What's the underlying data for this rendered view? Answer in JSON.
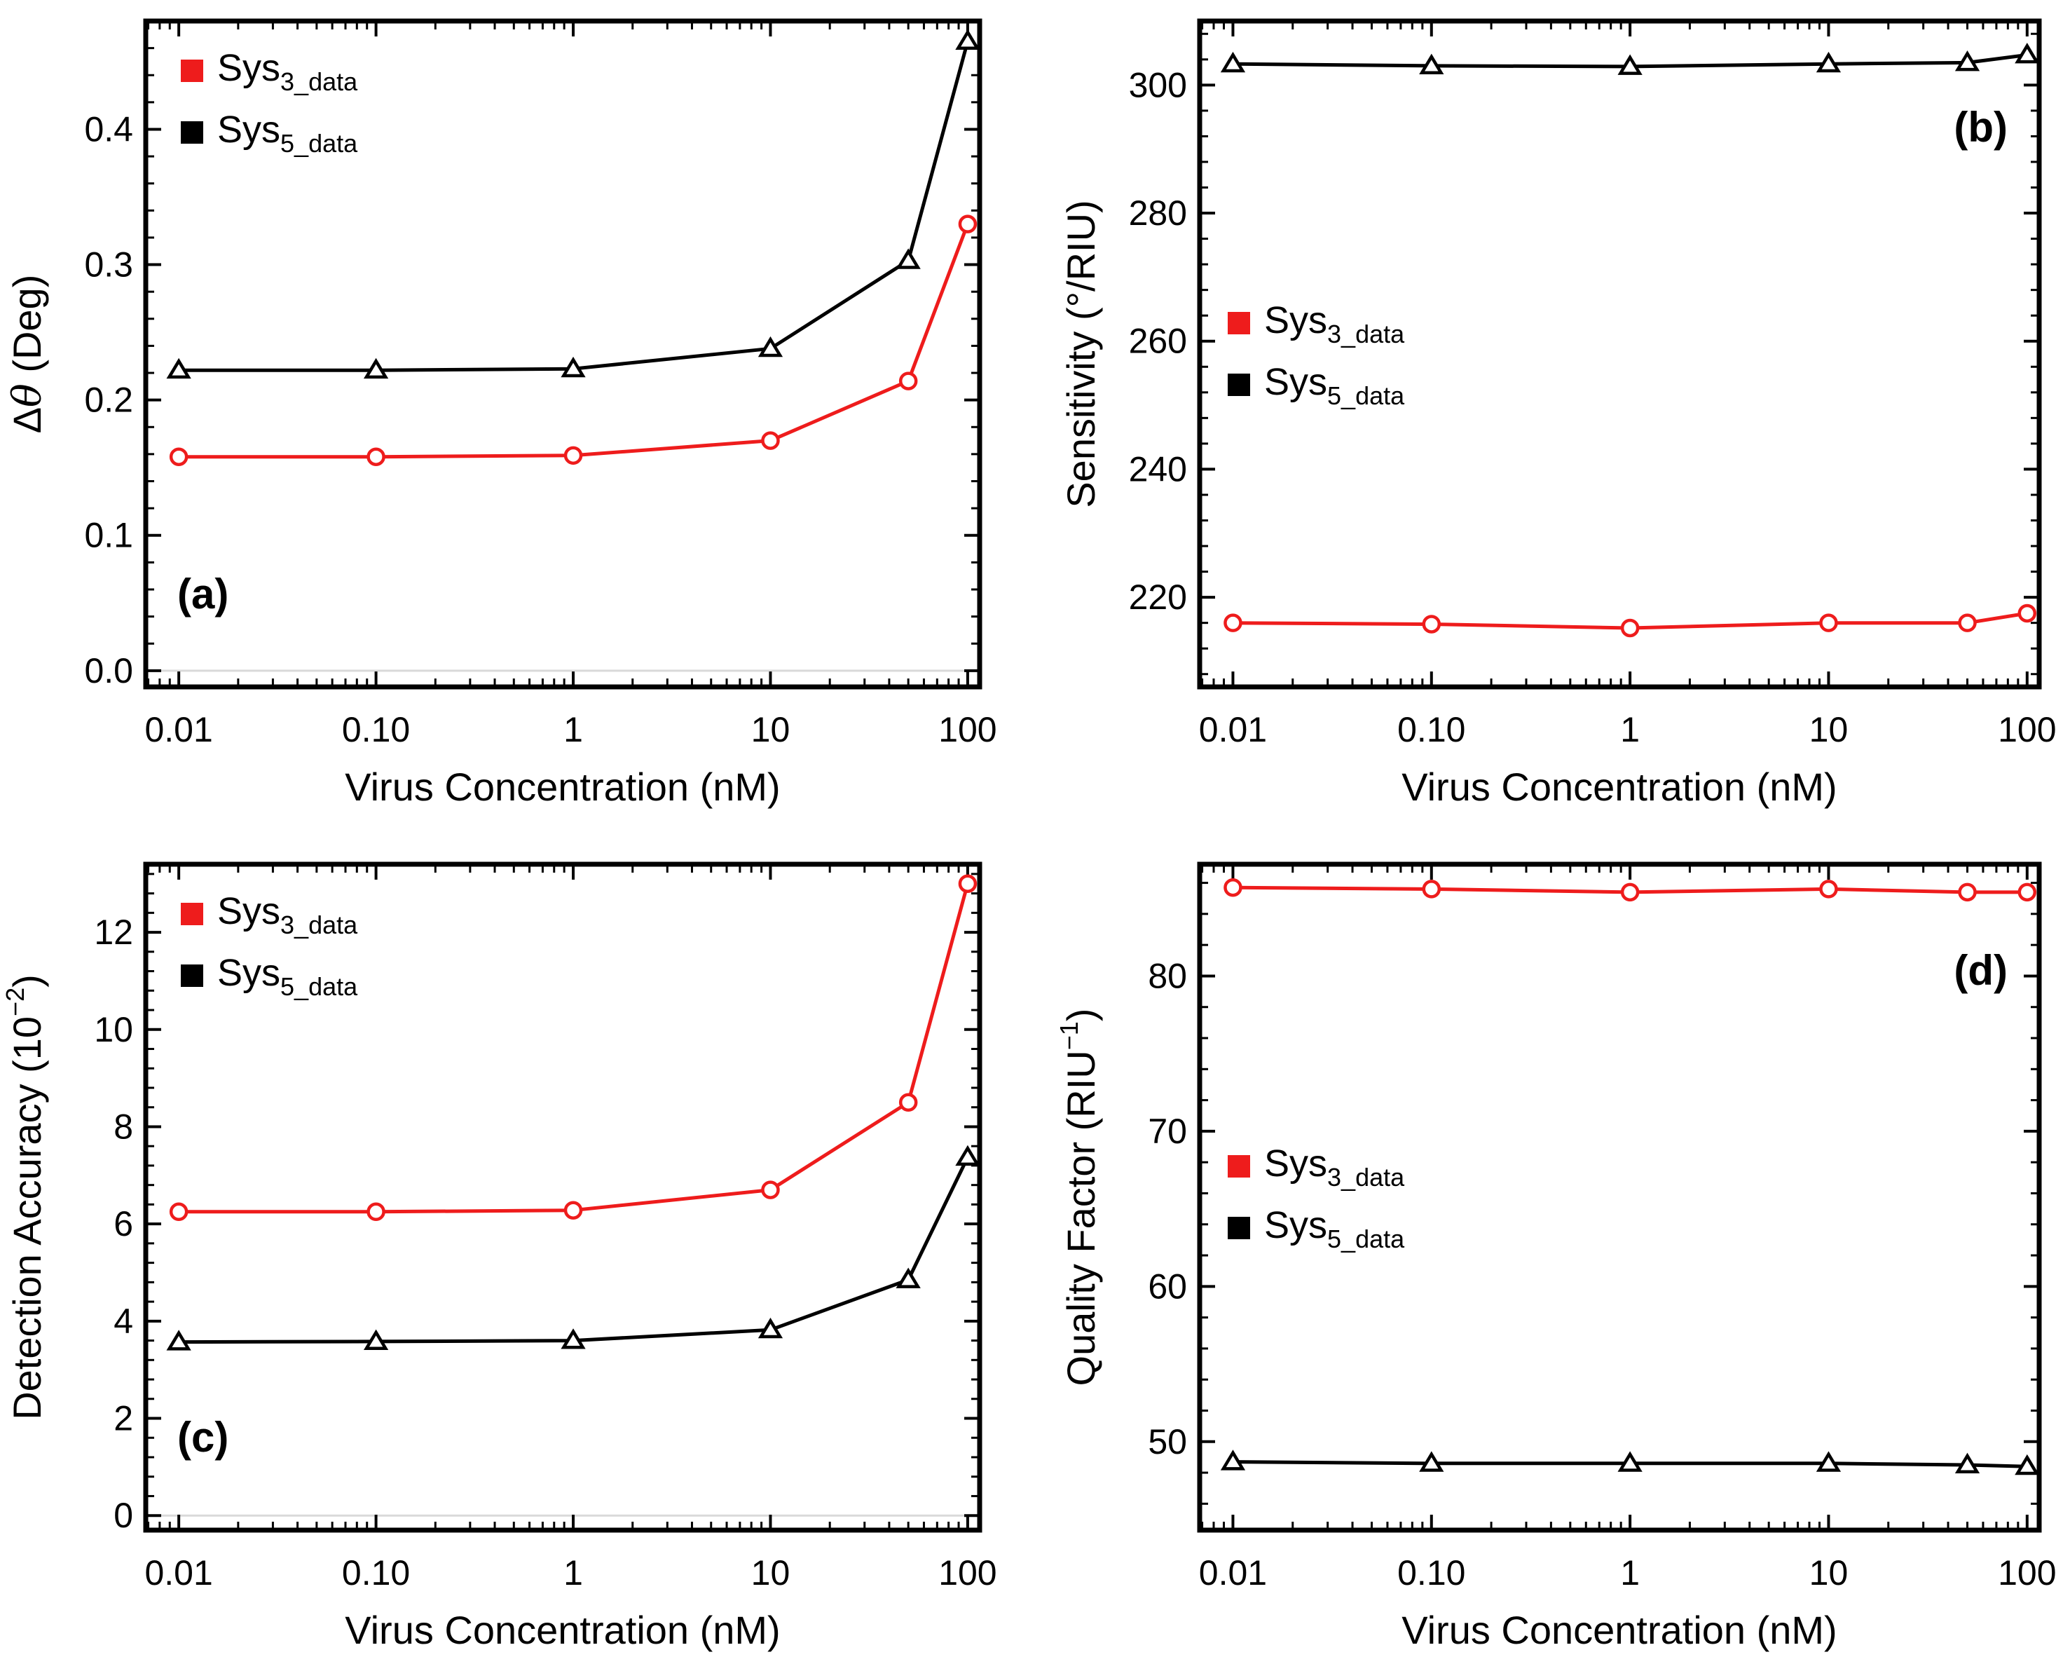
{
  "figure": {
    "legend_swatch_size": "square"
  },
  "colors": {
    "sys3": "#ee1c1c",
    "sys5": "#000000",
    "axis": "#000000",
    "zero_line": "#d9d9d9"
  },
  "chart_data": [
    {
      "type": "line",
      "panel": "(a)",
      "panel_label": "(a)",
      "panel_label_placement": "bottom-left",
      "title": "",
      "xlabel": "Virus Concentration (nM)",
      "ylabel": "Δθ (Deg)",
      "ylabel_parts": {
        "main": "Δ",
        "italic": "θ",
        "tail": " (Deg)"
      },
      "xscale": "log",
      "xlim": [
        0.0068,
        115
      ],
      "ylim": [
        -0.012,
        0.48
      ],
      "xticks": [
        0.01,
        0.1,
        1,
        10,
        100
      ],
      "xtick_labels": [
        "0.01",
        "0.10",
        "1",
        "10",
        "100"
      ],
      "yticks": [
        0.0,
        0.1,
        0.2,
        0.3,
        0.4
      ],
      "ytick_labels": [
        "0.0",
        "0.1",
        "0.2",
        "0.3",
        "0.4"
      ],
      "zero_line": true,
      "legend_placement": "top-left",
      "legend": [
        {
          "name": "Sys",
          "sub": "3_data"
        },
        {
          "name": "Sys",
          "sub": "5_data"
        }
      ],
      "x": [
        0.01,
        0.1,
        1,
        10,
        50,
        100
      ],
      "series": [
        {
          "name": "Sys3_data",
          "marker": "circle",
          "values": [
            0.158,
            0.158,
            0.159,
            0.17,
            0.214,
            0.33
          ]
        },
        {
          "name": "Sys5_data",
          "marker": "triangle",
          "values": [
            0.222,
            0.222,
            0.223,
            0.238,
            0.303,
            0.465
          ]
        }
      ]
    },
    {
      "type": "line",
      "panel": "(b)",
      "panel_label": "(b)",
      "panel_label_placement": "top-right",
      "title": "",
      "xlabel": "Virus Concentration (nM)",
      "ylabel": "Sensitivity (°/RIU)",
      "xscale": "log",
      "xlim": [
        0.0068,
        115
      ],
      "ylim": [
        206,
        310
      ],
      "xticks": [
        0.01,
        0.1,
        1,
        10,
        100
      ],
      "xtick_labels": [
        "0.01",
        "0.10",
        "1",
        "10",
        "100"
      ],
      "yticks": [
        220,
        240,
        260,
        280,
        300
      ],
      "ytick_labels": [
        "220",
        "240",
        "260",
        "280",
        "300"
      ],
      "zero_line": false,
      "legend_placement": "center-left",
      "legend": [
        {
          "name": "Sys",
          "sub": "3_data"
        },
        {
          "name": "Sys",
          "sub": "5_data"
        }
      ],
      "x": [
        0.01,
        0.1,
        1,
        10,
        50,
        100
      ],
      "series": [
        {
          "name": "Sys3_data",
          "marker": "circle",
          "values": [
            216,
            215.8,
            215.2,
            216,
            216,
            217.5
          ]
        },
        {
          "name": "Sys5_data",
          "marker": "triangle",
          "values": [
            303.3,
            303.0,
            302.9,
            303.3,
            303.5,
            304.7
          ]
        }
      ]
    },
    {
      "type": "line",
      "panel": "(c)",
      "panel_label": "(c)",
      "panel_label_placement": "bottom-left",
      "title": "",
      "xlabel": "Virus Concentration (nM)",
      "ylabel": "Detection Accuracy (10",
      "ylabel_sup": "−2",
      "ylabel_tail": ")",
      "xscale": "log",
      "xlim": [
        0.0068,
        115
      ],
      "ylim": [
        -0.3,
        13.4
      ],
      "xticks": [
        0.01,
        0.1,
        1,
        10,
        100
      ],
      "xtick_labels": [
        "0.01",
        "0.10",
        "1",
        "10",
        "100"
      ],
      "yticks": [
        0,
        2,
        4,
        6,
        8,
        10,
        12
      ],
      "ytick_labels": [
        "0",
        "2",
        "4",
        "6",
        "8",
        "10",
        "12"
      ],
      "zero_line": true,
      "legend_placement": "top-left",
      "legend": [
        {
          "name": "Sys",
          "sub": "3_data"
        },
        {
          "name": "Sys",
          "sub": "5_data"
        }
      ],
      "x": [
        0.01,
        0.1,
        1,
        10,
        50,
        100
      ],
      "series": [
        {
          "name": "Sys3_data",
          "marker": "circle",
          "values": [
            6.25,
            6.25,
            6.28,
            6.7,
            8.5,
            13.0
          ]
        },
        {
          "name": "Sys5_data",
          "marker": "triangle",
          "values": [
            3.57,
            3.58,
            3.6,
            3.82,
            4.85,
            7.37
          ]
        }
      ]
    },
    {
      "type": "line",
      "panel": "(d)",
      "panel_label": "(d)",
      "panel_label_placement": "top-right",
      "title": "",
      "xlabel": "Virus Concentration (nM)",
      "ylabel": "Quality Factor (RIU",
      "ylabel_sup": "−1",
      "ylabel_tail": ")",
      "xscale": "log",
      "xlim": [
        0.0068,
        115
      ],
      "ylim": [
        44.3,
        87.2
      ],
      "xticks": [
        0.01,
        0.1,
        1,
        10,
        100
      ],
      "xtick_labels": [
        "0.01",
        "0.10",
        "1",
        "10",
        "100"
      ],
      "yticks": [
        50,
        60,
        70,
        80
      ],
      "ytick_labels": [
        "50",
        "60",
        "70",
        "80"
      ],
      "zero_line": false,
      "legend_placement": "center-left",
      "legend": [
        {
          "name": "Sys",
          "sub": "3_data"
        },
        {
          "name": "Sys",
          "sub": "5_data"
        }
      ],
      "x": [
        0.01,
        0.1,
        1,
        10,
        50,
        100
      ],
      "series": [
        {
          "name": "Sys3_data",
          "marker": "circle",
          "values": [
            85.7,
            85.6,
            85.4,
            85.6,
            85.4,
            85.4
          ]
        },
        {
          "name": "Sys5_data",
          "marker": "triangle",
          "values": [
            48.7,
            48.6,
            48.6,
            48.6,
            48.5,
            48.4
          ]
        }
      ]
    }
  ]
}
